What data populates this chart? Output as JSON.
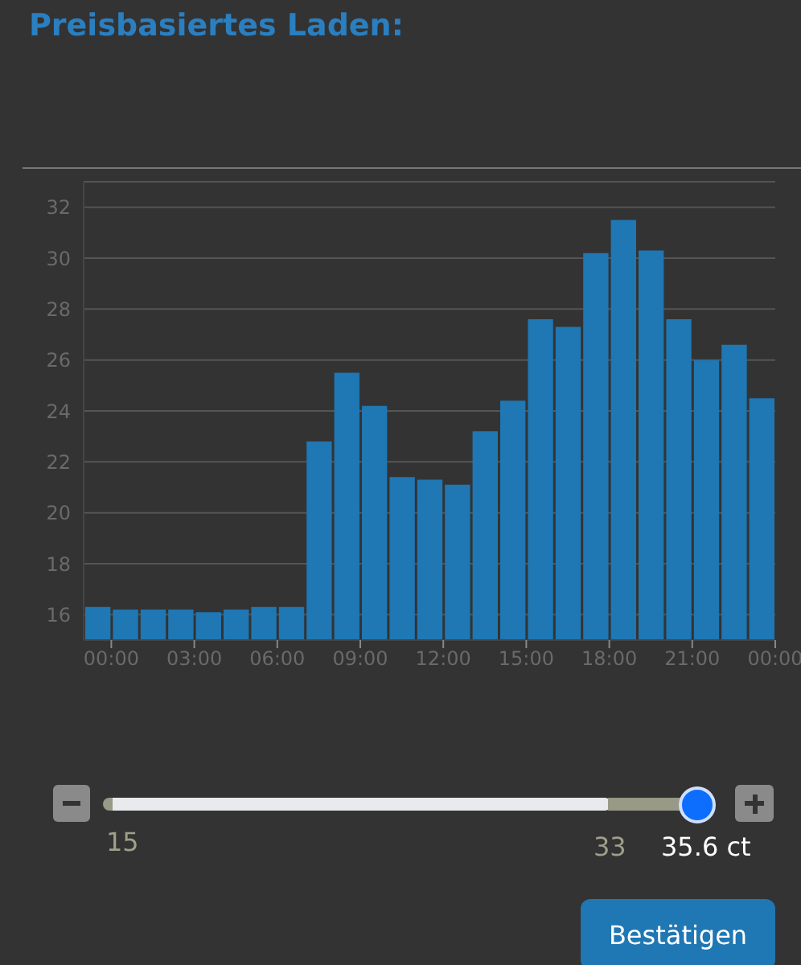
{
  "chart_data": {
    "type": "histogram",
    "title": "Preisbasiertes Laden:",
    "bins": [
      -1,
      0,
      1,
      2,
      3,
      4,
      5,
      6,
      7,
      8,
      9,
      10,
      11,
      12,
      13,
      14,
      15,
      16,
      17,
      18,
      19,
      20,
      21,
      22,
      23,
      24
    ],
    "values": [
      16.3,
      16.2,
      16.2,
      16.2,
      16.1,
      16.2,
      16.3,
      16.3,
      22.8,
      25.5,
      24.2,
      21.4,
      21.3,
      21.1,
      23.2,
      24.4,
      27.6,
      27.3,
      30.2,
      31.5,
      30.3,
      27.6,
      26.0,
      26.6,
      24.5
    ],
    "color": "#1f77b4",
    "xlim": [
      -1,
      24
    ],
    "xticks": [
      {
        "value": 0,
        "label": "00:00"
      },
      {
        "value": 3,
        "label": "03:00"
      },
      {
        "value": 6,
        "label": "06:00"
      },
      {
        "value": 9,
        "label": "09:00"
      },
      {
        "value": 12,
        "label": "12:00"
      },
      {
        "value": 15,
        "label": "15:00"
      },
      {
        "value": 18,
        "label": "18:00"
      },
      {
        "value": 21,
        "label": "21:00"
      },
      {
        "value": 24,
        "label": "00:00"
      }
    ],
    "ylim": [
      15,
      33
    ],
    "yticks": [
      16,
      18,
      20,
      22,
      24,
      26,
      28,
      30,
      32
    ],
    "grid": "y",
    "annotations": [
      "15",
      "33",
      "35.6 ct",
      "Bestätigen"
    ]
  }
}
